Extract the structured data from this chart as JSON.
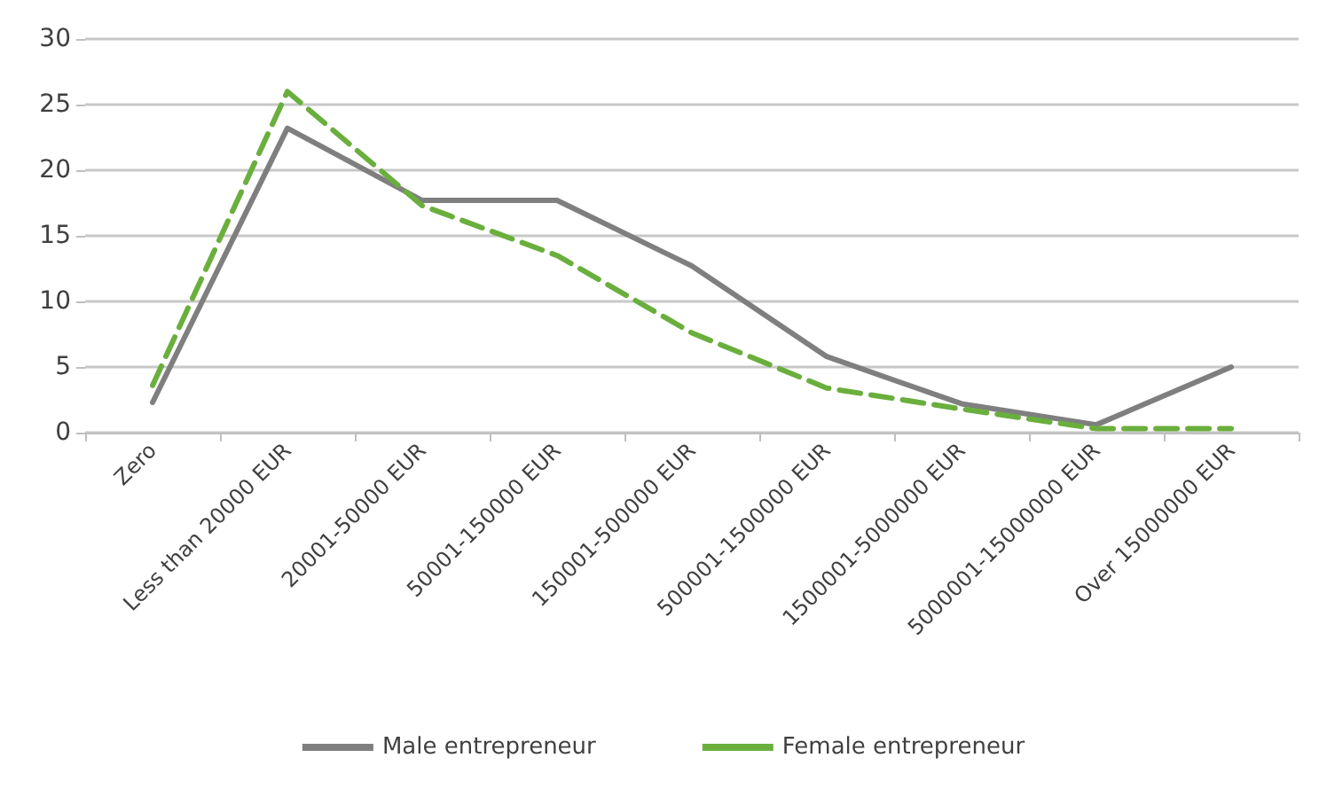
{
  "chart_data": {
    "type": "line",
    "categories": [
      "Zero",
      "Less than 20000 EUR",
      "20001-50000 EUR",
      "50001-150000 EUR",
      "150001-500000 EUR",
      "500001-1500000 EUR",
      "1500001-5000000 EUR",
      "5000001-15000000 EUR",
      "Over 15000000 EUR"
    ],
    "series": [
      {
        "name": "Male entrepreneur",
        "color": "#7f7f7f",
        "line_style": "solid",
        "values": [
          2.3,
          23.2,
          17.7,
          17.7,
          12.7,
          5.8,
          2.2,
          0.6,
          5.0
        ]
      },
      {
        "name": "Female entrepreneur",
        "color": "#6aaf3d",
        "line_style": "dashed",
        "values": [
          3.6,
          26.0,
          17.3,
          13.5,
          7.6,
          3.4,
          1.8,
          0.3,
          0.3
        ]
      }
    ],
    "ylim": [
      0,
      30
    ],
    "yticks": [
      0,
      5,
      10,
      15,
      20,
      25,
      30
    ],
    "grid": "y",
    "legend": "bottom",
    "marker": "none"
  }
}
